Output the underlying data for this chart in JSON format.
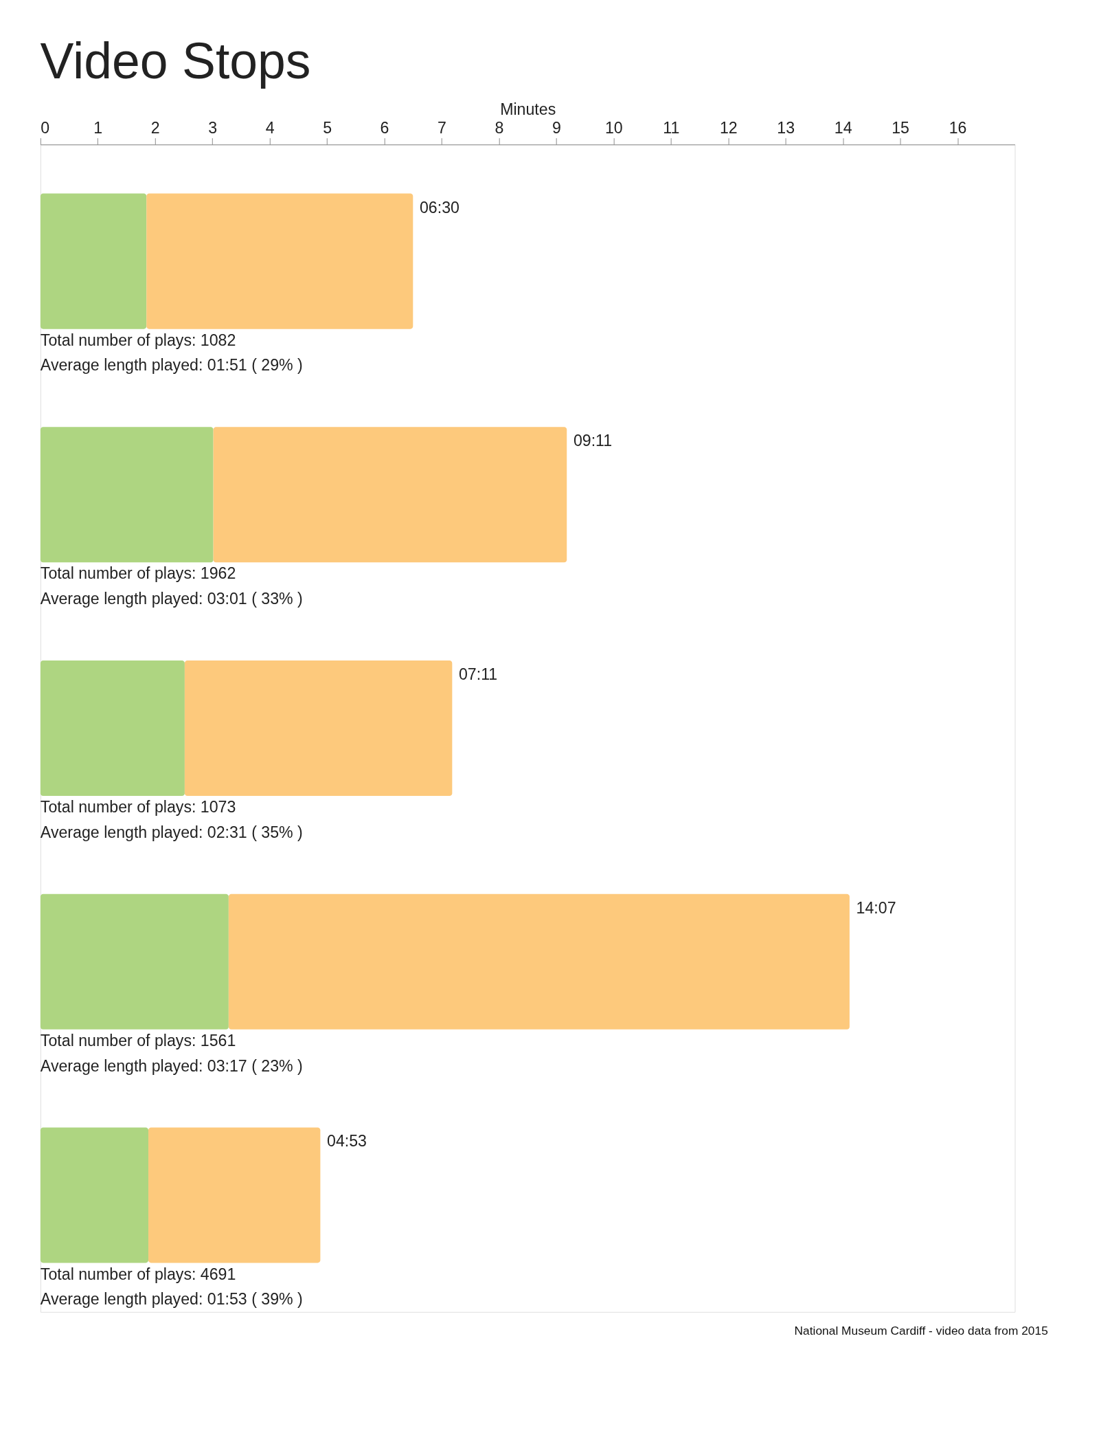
{
  "chart_data": {
    "type": "bar",
    "orientation": "horizontal",
    "stacked": true,
    "title": "Video Stops",
    "xlabel": "Minutes",
    "categories": [
      null,
      null,
      null,
      null,
      null
    ],
    "series": [
      {
        "color": "#aed581",
        "values": [
          1.85,
          3.0167,
          2.5167,
          3.2833,
          1.8833
        ]
      },
      {
        "color": "#fdc97c",
        "values": [
          4.65,
          6.1667,
          4.6667,
          10.8333,
          3.0
        ]
      }
    ],
    "totals": [
      "06:30",
      "09:11",
      "07:11",
      "14:07",
      "04:53"
    ],
    "xlim": [
      0,
      17
    ],
    "xticks": [
      0,
      1,
      2,
      3,
      4,
      5,
      6,
      7,
      8,
      9,
      10,
      11,
      12,
      13,
      14,
      15,
      16
    ],
    "grid": false,
    "legend": false,
    "annotations": [
      "Total number of plays: 1082",
      "Average length played: 01:51 ( 29% )",
      "Total number of plays: 1962",
      "Average length played: 03:01 ( 33% )",
      "Total number of plays: 1073",
      "Average length played: 02:31 ( 35% )",
      "Total number of plays: 1561",
      "Average length played: 03:17 ( 23% )",
      "Total number of plays: 4691",
      "Average length played: 01:53 ( 39% )",
      "National Museum Cardiff - video data from 2015"
    ]
  }
}
